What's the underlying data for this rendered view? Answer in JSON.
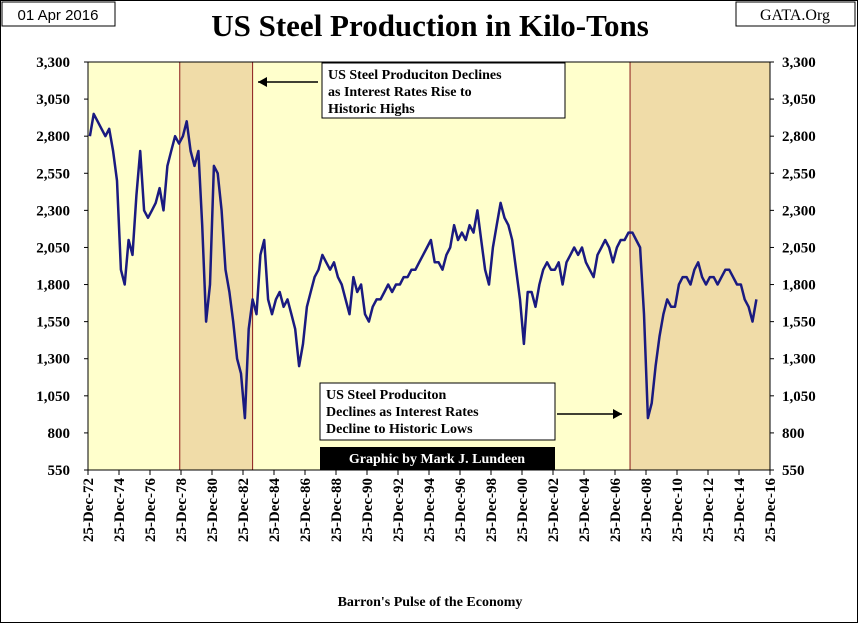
{
  "chart_data": {
    "type": "line",
    "title": "US Steel Production in Kilo-Tons",
    "date_label": "01 Apr 2016",
    "source": "GATA.Org",
    "x_label": "Barron's Pulse of the Economy",
    "credit": "Graphic by Mark J. Lundeen",
    "annotations": [
      {
        "lines": [
          "US Steel Produciton Declines",
          "as Interest Rates Rise to",
          "Historic Highs"
        ]
      },
      {
        "lines": [
          "US Steel Produciton",
          "Declines  as Interest Rates",
          "Decline to Historic Lows"
        ]
      }
    ],
    "shaded_regions": [
      [
        1978.9,
        1983.6
      ],
      [
        2007.95,
        2016.98
      ]
    ],
    "background": "#ffffcc",
    "shade_color": "#f0dca8",
    "border_color": "#8b1a1a",
    "xlim": [
      1972.98,
      2016.98
    ],
    "xticks": [
      {
        "value": 1972.98,
        "label": "25-Dec-72"
      },
      {
        "value": 1974.98,
        "label": "25-Dec-74"
      },
      {
        "value": 1976.98,
        "label": "25-Dec-76"
      },
      {
        "value": 1978.98,
        "label": "25-Dec-78"
      },
      {
        "value": 1980.98,
        "label": "25-Dec-80"
      },
      {
        "value": 1982.98,
        "label": "25-Dec-82"
      },
      {
        "value": 1984.98,
        "label": "25-Dec-84"
      },
      {
        "value": 1986.98,
        "label": "25-Dec-86"
      },
      {
        "value": 1988.98,
        "label": "25-Dec-88"
      },
      {
        "value": 1990.98,
        "label": "25-Dec-90"
      },
      {
        "value": 1992.98,
        "label": "25-Dec-92"
      },
      {
        "value": 1994.98,
        "label": "25-Dec-94"
      },
      {
        "value": 1996.98,
        "label": "25-Dec-96"
      },
      {
        "value": 1998.98,
        "label": "25-Dec-98"
      },
      {
        "value": 2000.98,
        "label": "25-Dec-00"
      },
      {
        "value": 2002.98,
        "label": "25-Dec-02"
      },
      {
        "value": 2004.98,
        "label": "25-Dec-04"
      },
      {
        "value": 2006.98,
        "label": "25-Dec-06"
      },
      {
        "value": 2008.98,
        "label": "25-Dec-08"
      },
      {
        "value": 2010.98,
        "label": "25-Dec-10"
      },
      {
        "value": 2012.98,
        "label": "25-Dec-12"
      },
      {
        "value": 2014.98,
        "label": "25-Dec-14"
      },
      {
        "value": 2016.98,
        "label": "25-Dec-16"
      }
    ],
    "ylim": [
      550,
      3300
    ],
    "yticks": [
      {
        "value": 550,
        "label": "550"
      },
      {
        "value": 800,
        "label": "800"
      },
      {
        "value": 1050,
        "label": "1,050"
      },
      {
        "value": 1300,
        "label": "1,300"
      },
      {
        "value": 1550,
        "label": "1,550"
      },
      {
        "value": 1800,
        "label": "1,800"
      },
      {
        "value": 2050,
        "label": "2,050"
      },
      {
        "value": 2300,
        "label": "2,300"
      },
      {
        "value": 2550,
        "label": "2,550"
      },
      {
        "value": 2800,
        "label": "2,800"
      },
      {
        "value": 3050,
        "label": "3,050"
      },
      {
        "value": 3300,
        "label": "3,300"
      }
    ],
    "y2lim": [
      550,
      3300
    ],
    "y2ticks": [
      {
        "value": 550,
        "label": "550"
      },
      {
        "value": 800,
        "label": "800"
      },
      {
        "value": 1050,
        "label": "1,050"
      },
      {
        "value": 1300,
        "label": "1,300"
      },
      {
        "value": 1550,
        "label": "1,550"
      },
      {
        "value": 1800,
        "label": "1,800"
      },
      {
        "value": 2050,
        "label": "2,050"
      },
      {
        "value": 2300,
        "label": "2,300"
      },
      {
        "value": 2550,
        "label": "2,550"
      },
      {
        "value": 2800,
        "label": "2,800"
      },
      {
        "value": 3050,
        "label": "3,050"
      },
      {
        "value": 3300,
        "label": "3,300"
      }
    ],
    "x": [
      1973.1,
      1973.35,
      1973.6,
      1973.85,
      1974.1,
      1974.35,
      1974.6,
      1974.85,
      1975.1,
      1975.35,
      1975.6,
      1975.85,
      1976.1,
      1976.35,
      1976.6,
      1976.85,
      1977.1,
      1977.35,
      1977.6,
      1977.85,
      1978.1,
      1978.35,
      1978.6,
      1978.85,
      1979.1,
      1979.35,
      1979.6,
      1979.85,
      1980.1,
      1980.35,
      1980.6,
      1980.85,
      1981.1,
      1981.35,
      1981.6,
      1981.85,
      1982.1,
      1982.35,
      1982.6,
      1982.85,
      1983.1,
      1983.35,
      1983.6,
      1983.85,
      1984.1,
      1984.35,
      1984.6,
      1984.85,
      1985.1,
      1985.35,
      1985.6,
      1985.85,
      1986.1,
      1986.35,
      1986.6,
      1986.85,
      1987.1,
      1987.35,
      1987.6,
      1987.85,
      1988.1,
      1988.35,
      1988.6,
      1988.85,
      1989.1,
      1989.35,
      1989.6,
      1989.85,
      1990.1,
      1990.35,
      1990.6,
      1990.85,
      1991.1,
      1991.35,
      1991.6,
      1991.85,
      1992.1,
      1992.35,
      1992.6,
      1992.85,
      1993.1,
      1993.35,
      1993.6,
      1993.85,
      1994.1,
      1994.35,
      1994.6,
      1994.85,
      1995.1,
      1995.35,
      1995.6,
      1995.85,
      1996.1,
      1996.35,
      1996.6,
      1996.85,
      1997.1,
      1997.35,
      1997.6,
      1997.85,
      1998.1,
      1998.35,
      1998.6,
      1998.85,
      1999.1,
      1999.35,
      1999.6,
      1999.85,
      2000.1,
      2000.35,
      2000.6,
      2000.85,
      2001.1,
      2001.35,
      2001.6,
      2001.85,
      2002.1,
      2002.35,
      2002.6,
      2002.85,
      2003.1,
      2003.35,
      2003.6,
      2003.85,
      2004.1,
      2004.35,
      2004.6,
      2004.85,
      2005.1,
      2005.35,
      2005.6,
      2005.85,
      2006.1,
      2006.35,
      2006.6,
      2006.85,
      2007.1,
      2007.35,
      2007.6,
      2007.85,
      2008.1,
      2008.35,
      2008.6,
      2008.85,
      2009.1,
      2009.35,
      2009.6,
      2009.85,
      2010.1,
      2010.35,
      2010.6,
      2010.85,
      2011.1,
      2011.35,
      2011.6,
      2011.85,
      2012.1,
      2012.35,
      2012.6,
      2012.85,
      2013.1,
      2013.35,
      2013.6,
      2013.85,
      2014.1,
      2014.35,
      2014.6,
      2014.85,
      2015.1,
      2015.35,
      2015.6,
      2015.85,
      2016.1
    ],
    "series": [
      {
        "name": "US Steel Production",
        "color": "#1a1a80",
        "values": [
          2800,
          2950,
          2900,
          2850,
          2800,
          2850,
          2700,
          2500,
          1900,
          1800,
          2100,
          2000,
          2400,
          2700,
          2300,
          2250,
          2300,
          2350,
          2450,
          2300,
          2600,
          2700,
          2800,
          2750,
          2800,
          2900,
          2700,
          2600,
          2700,
          2200,
          1550,
          1800,
          2600,
          2550,
          2300,
          1900,
          1750,
          1550,
          1300,
          1200,
          900,
          1500,
          1700,
          1600,
          2000,
          2100,
          1700,
          1600,
          1700,
          1750,
          1650,
          1700,
          1600,
          1500,
          1250,
          1400,
          1650,
          1750,
          1850,
          1900,
          2000,
          1950,
          1900,
          1950,
          1850,
          1800,
          1700,
          1600,
          1850,
          1750,
          1800,
          1600,
          1550,
          1650,
          1700,
          1700,
          1750,
          1800,
          1750,
          1800,
          1800,
          1850,
          1850,
          1900,
          1900,
          1950,
          2000,
          2050,
          2100,
          1950,
          1950,
          1900,
          2000,
          2050,
          2200,
          2100,
          2150,
          2100,
          2200,
          2150,
          2300,
          2100,
          1900,
          1800,
          2050,
          2200,
          2350,
          2250,
          2200,
          2100,
          1900,
          1700,
          1400,
          1750,
          1750,
          1650,
          1800,
          1900,
          1950,
          1900,
          1900,
          1950,
          1800,
          1950,
          2000,
          2050,
          2000,
          2050,
          1950,
          1900,
          1850,
          2000,
          2050,
          2100,
          2050,
          1950,
          2050,
          2100,
          2100,
          2150,
          2150,
          2100,
          2050,
          1600,
          900,
          1000,
          1250,
          1450,
          1600,
          1700,
          1650,
          1650,
          1800,
          1850,
          1850,
          1800,
          1900,
          1950,
          1850,
          1800,
          1850,
          1850,
          1800,
          1850,
          1900,
          1900,
          1850,
          1800,
          1800,
          1700,
          1650,
          1550,
          1700
        ]
      }
    ]
  }
}
